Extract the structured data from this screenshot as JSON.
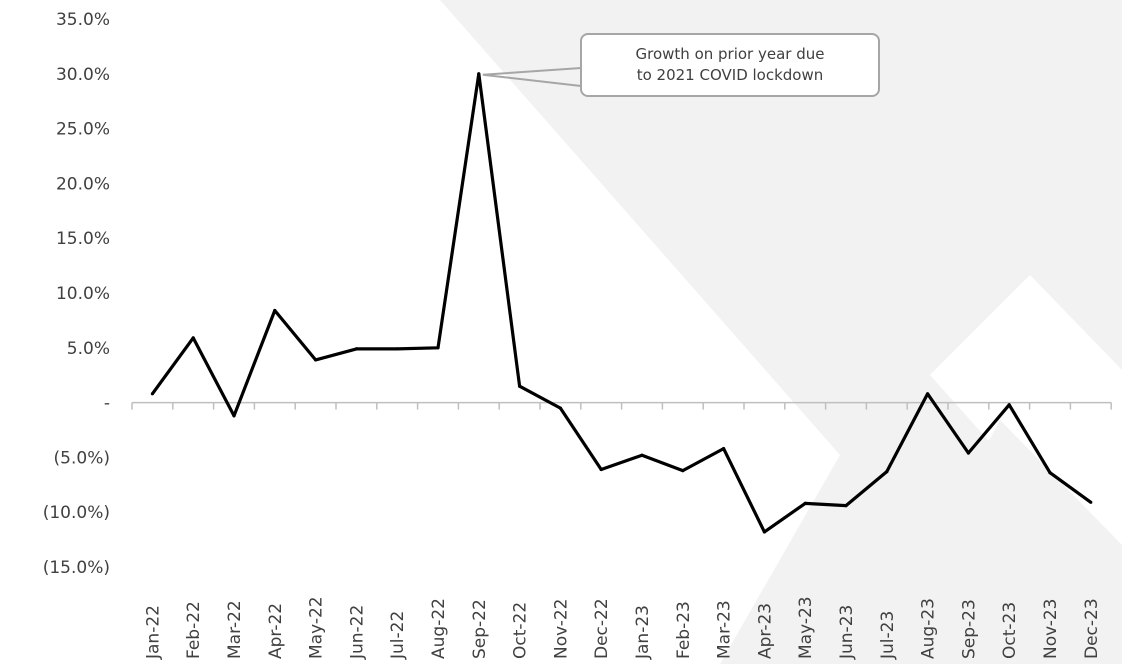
{
  "chart_data": {
    "type": "line",
    "title": "",
    "xlabel": "",
    "ylabel": "",
    "categories": [
      "Jan-22",
      "Feb-22",
      "Mar-22",
      "Apr-22",
      "May-22",
      "Jun-22",
      "Jul-22",
      "Aug-22",
      "Sep-22",
      "Oct-22",
      "Nov-22",
      "Dec-22",
      "Jan-23",
      "Feb-23",
      "Mar-23",
      "Apr-23",
      "May-23",
      "Jun-23",
      "Jul-23",
      "Aug-23",
      "Sep-23",
      "Oct-23",
      "Nov-23",
      "Dec-23"
    ],
    "series": [
      {
        "values": [
          0.8,
          5.9,
          -1.2,
          8.4,
          3.9,
          4.9,
          4.9,
          5.0,
          30.0,
          1.5,
          -0.5,
          -6.1,
          -4.8,
          -6.2,
          -4.2,
          -11.8,
          -9.2,
          -9.4,
          -6.3,
          0.8,
          -4.6,
          -0.2,
          -6.4,
          -9.1
        ]
      }
    ],
    "ylim": [
      -15,
      35
    ],
    "y_ticks": [
      35,
      30,
      25,
      20,
      15,
      10,
      5,
      0,
      -5,
      -10,
      -15
    ],
    "y_tick_labels": [
      "35.0%",
      "30.0%",
      "25.0%",
      "20.0%",
      "15.0%",
      "10.0%",
      "5.0%",
      "-",
      "(5.0%)",
      "(10.0%)",
      "(15.0%)"
    ],
    "grid": false,
    "line_color": "#000000",
    "annotation": {
      "lines": [
        "Growth on prior year due",
        "to 2021 COVID lockdown"
      ],
      "target": "Sep-22"
    }
  }
}
